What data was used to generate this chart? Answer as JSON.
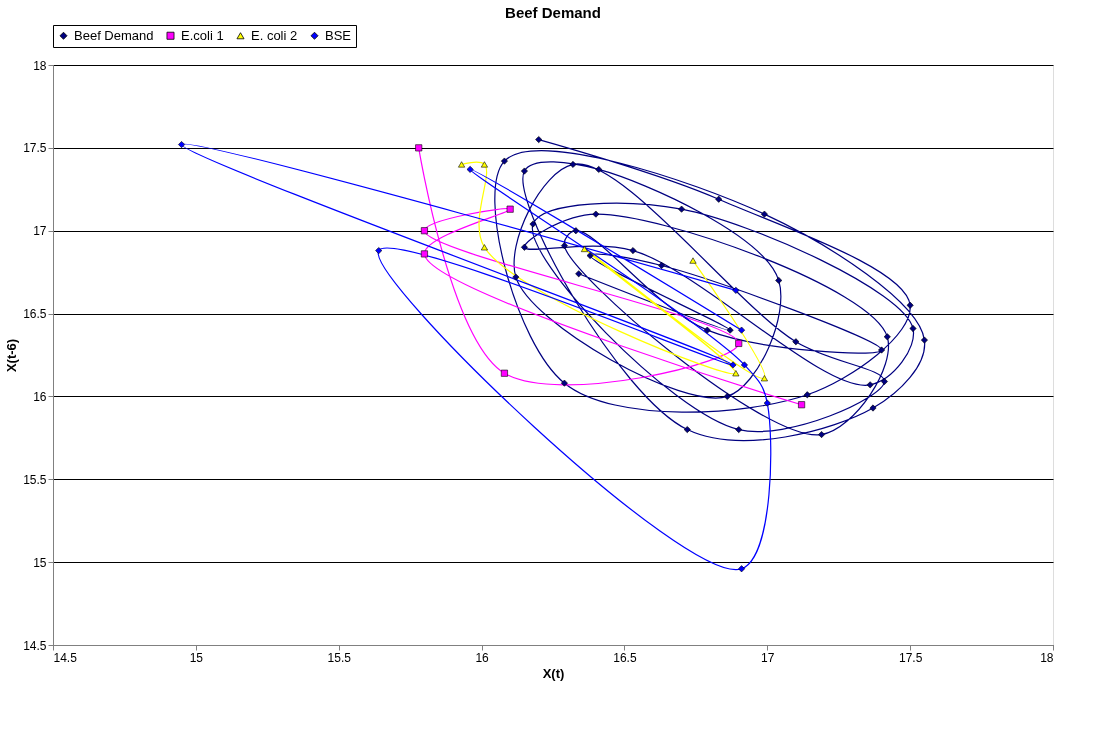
{
  "chart_data": {
    "type": "line",
    "title": "Beef Demand",
    "xlabel": "X(t)",
    "ylabel": "X(t-6)",
    "xlim": [
      14.5,
      18
    ],
    "xticks": [
      14.5,
      15,
      15.5,
      16,
      16.5,
      17,
      17.5,
      18
    ],
    "ylim": [
      14.5,
      18
    ],
    "yticks": [
      14.5,
      15,
      15.5,
      16,
      16.5,
      17,
      17.5,
      18
    ],
    "grid": "y",
    "legend": "top",
    "line_style": "solid",
    "series": [
      {
        "name": "Beef Demand",
        "color": "#000080",
        "marker": "diamond",
        "x": [
          16.2,
          16.83,
          17.5,
          17.14,
          16.29,
          16.08,
          16.99,
          17.55,
          17.37,
          16.72,
          16.15,
          16.41,
          17.04,
          16.86,
          16.12,
          16.32,
          17.1,
          17.41,
          16.9,
          16.18,
          16.7,
          17.51,
          17.36,
          16.53,
          16.15,
          16.4,
          17.42,
          17.19,
          16.29,
          16.33,
          16.79,
          17.4,
          16.63,
          16.38,
          16.87,
          16.34
        ],
        "values": [
          17.55,
          17.19,
          16.55,
          16.01,
          16.08,
          17.42,
          17.1,
          16.34,
          15.93,
          15.8,
          17.36,
          17.37,
          16.7,
          16.0,
          16.72,
          17.4,
          16.33,
          16.09,
          15.8,
          17.04,
          17.13,
          16.41,
          16.07,
          16.88,
          16.9,
          17.1,
          16.36,
          15.77,
          16.91,
          17.0,
          16.4,
          16.28,
          16.79,
          16.85,
          16.4,
          16.74
        ]
      },
      {
        "name": "E.coli 1",
        "color": "#ff00ff",
        "marker": "square",
        "x": [
          15.78,
          16.08,
          16.9,
          15.8,
          16.1,
          15.8,
          17.12
        ],
        "values": [
          17.5,
          16.14,
          16.32,
          17.0,
          17.13,
          16.86,
          15.95
        ]
      },
      {
        "name": "E. coli 2",
        "color": "#ffff00",
        "marker": "triangle",
        "x": [
          15.93,
          16.01,
          16.01,
          16.89,
          16.36,
          16.99,
          16.74
        ],
        "values": [
          17.4,
          17.4,
          16.9,
          16.14,
          16.89,
          16.11,
          16.82
        ]
      },
      {
        "name": "BSE",
        "color": "#0000ff",
        "marker": "diamond",
        "x": [
          16.89,
          14.95,
          16.88,
          15.64,
          16.91,
          17.0,
          16.92,
          15.96,
          16.91
        ],
        "values": [
          16.64,
          17.52,
          16.19,
          16.88,
          14.96,
          15.96,
          16.19,
          17.37,
          16.4
        ]
      }
    ]
  }
}
